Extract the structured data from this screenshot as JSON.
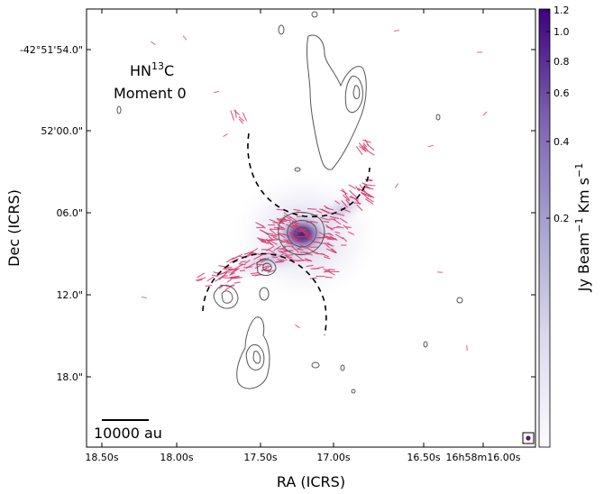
{
  "chart_data": {
    "type": "heatmap",
    "title": "",
    "annotation": {
      "line1": "HN",
      "line1_sup": "13",
      "line1_end": "C",
      "line2": "Moment 0"
    },
    "xlabel": "RA (ICRS)",
    "ylabel": "Dec (ICRS)",
    "x_ticks": [
      "18.50s",
      "18.00s",
      "17.50s",
      "17.00s",
      "16.50s",
      "16h58m16.00s"
    ],
    "y_ticks": [
      "-42°51'54.0\"",
      "52'00.0\"",
      "06.0\"",
      "12.0\"",
      "18.0\""
    ],
    "colorbar": {
      "label_main": "Jy Beam",
      "label_sup1": "−1",
      "label_mid": " Km s",
      "label_sup2": "−1",
      "ticks": [
        "1.2",
        "1.0",
        "0.8",
        "0.6",
        "0.4",
        "0.2"
      ],
      "colormap": "Purples"
    },
    "scalebar_label": "10000 au",
    "colors": {
      "emission": "#5a2a86",
      "vectors": "#d9386a",
      "contours": "#555555"
    }
  }
}
